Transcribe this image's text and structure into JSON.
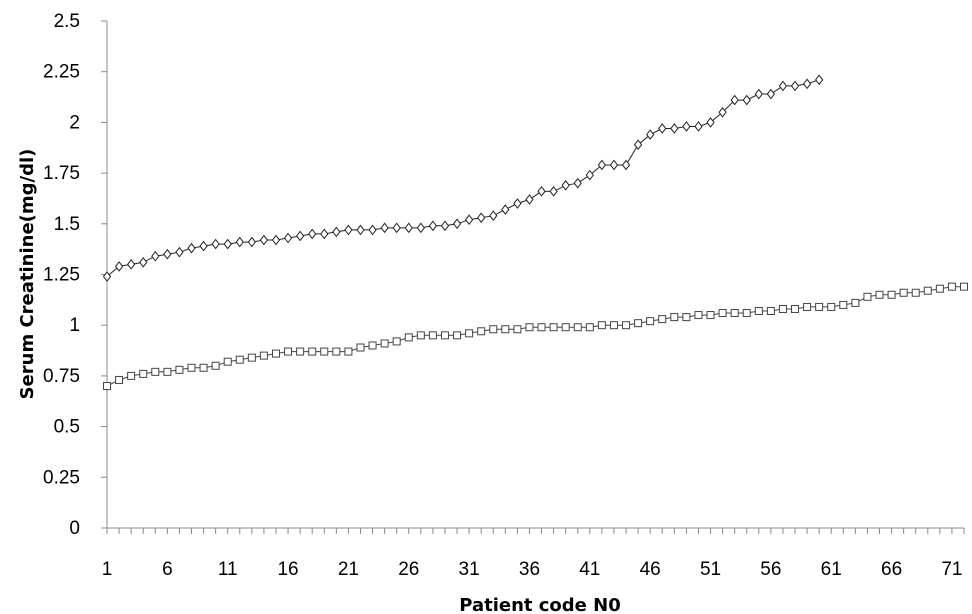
{
  "chart_data": {
    "type": "line",
    "title": "",
    "xlabel": "Patient code N0",
    "ylabel": "Serum Creatinine(mg/dl)",
    "xlim": [
      1,
      72
    ],
    "ylim": [
      0,
      2.5
    ],
    "grid": false,
    "x_ticks": [
      1,
      6,
      11,
      16,
      21,
      26,
      31,
      36,
      41,
      46,
      51,
      56,
      61,
      66,
      71
    ],
    "y_ticks": [
      "0",
      "0.25",
      "0.5",
      "0.75",
      "1",
      "1.25",
      "1.5",
      "1.75",
      "2",
      "2.25",
      "2.5"
    ],
    "series": [
      {
        "marker": "diamond",
        "x": [
          1,
          2,
          3,
          4,
          5,
          6,
          7,
          8,
          9,
          10,
          11,
          12,
          13,
          14,
          15,
          16,
          17,
          18,
          19,
          20,
          21,
          22,
          23,
          24,
          25,
          26,
          27,
          28,
          29,
          30,
          31,
          32,
          33,
          34,
          35,
          36,
          37,
          38,
          39,
          40,
          41,
          42,
          43,
          44,
          45,
          46,
          47,
          48,
          49,
          50,
          51,
          52,
          53,
          54,
          55,
          56,
          57,
          58,
          59,
          60
        ],
        "values": [
          1.24,
          1.29,
          1.3,
          1.31,
          1.34,
          1.35,
          1.36,
          1.38,
          1.39,
          1.4,
          1.4,
          1.41,
          1.41,
          1.42,
          1.42,
          1.43,
          1.44,
          1.45,
          1.45,
          1.46,
          1.47,
          1.47,
          1.47,
          1.48,
          1.48,
          1.48,
          1.48,
          1.49,
          1.49,
          1.5,
          1.52,
          1.53,
          1.54,
          1.57,
          1.6,
          1.62,
          1.66,
          1.66,
          1.69,
          1.7,
          1.74,
          1.79,
          1.79,
          1.79,
          1.89,
          1.94,
          1.97,
          1.97,
          1.98,
          1.98,
          2.0,
          2.05,
          2.11,
          2.11,
          2.14,
          2.14,
          2.18,
          2.18,
          2.19,
          2.21
        ]
      },
      {
        "marker": "square",
        "x": [
          1,
          2,
          3,
          4,
          5,
          6,
          7,
          8,
          9,
          10,
          11,
          12,
          13,
          14,
          15,
          16,
          17,
          18,
          19,
          20,
          21,
          22,
          23,
          24,
          25,
          26,
          27,
          28,
          29,
          30,
          31,
          32,
          33,
          34,
          35,
          36,
          37,
          38,
          39,
          40,
          41,
          42,
          43,
          44,
          45,
          46,
          47,
          48,
          49,
          50,
          51,
          52,
          53,
          54,
          55,
          56,
          57,
          58,
          59,
          60,
          61,
          62,
          63,
          64,
          65,
          66,
          67,
          68,
          69,
          70,
          71,
          72
        ],
        "values": [
          0.7,
          0.73,
          0.75,
          0.76,
          0.77,
          0.77,
          0.78,
          0.79,
          0.79,
          0.8,
          0.82,
          0.83,
          0.84,
          0.85,
          0.86,
          0.87,
          0.87,
          0.87,
          0.87,
          0.87,
          0.87,
          0.89,
          0.9,
          0.91,
          0.92,
          0.94,
          0.95,
          0.95,
          0.95,
          0.95,
          0.96,
          0.97,
          0.98,
          0.98,
          0.98,
          0.99,
          0.99,
          0.99,
          0.99,
          0.99,
          0.99,
          1.0,
          1.0,
          1.0,
          1.01,
          1.02,
          1.03,
          1.04,
          1.04,
          1.05,
          1.05,
          1.06,
          1.06,
          1.06,
          1.07,
          1.07,
          1.08,
          1.08,
          1.09,
          1.09,
          1.09,
          1.1,
          1.11,
          1.14,
          1.15,
          1.15,
          1.16,
          1.16,
          1.17,
          1.18,
          1.19,
          1.19
        ]
      }
    ]
  }
}
